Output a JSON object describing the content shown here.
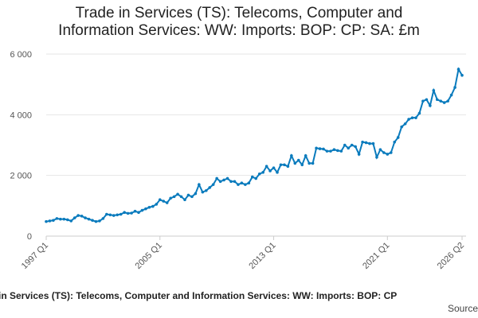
{
  "chart_data": {
    "type": "line",
    "title": "Trade in Services (TS): Telecoms, Computer and Information Services: WW: Imports: BOP: CP: SA: £m",
    "footer": "in Services (TS): Telecoms, Computer and Information Services: WW: Imports: BOP: CP",
    "source": "Source:",
    "color": "#0a7bbd",
    "grid": true,
    "ylim": [
      0,
      6000
    ],
    "yticks": [
      0,
      {
        "value": 2000,
        "label": "2 000"
      },
      {
        "value": 4000,
        "label": "4 000"
      },
      {
        "value": 6000,
        "label": "6 000"
      }
    ],
    "categories": [
      "1997 Q1",
      null,
      null,
      null,
      null,
      null,
      null,
      null,
      null,
      null,
      null,
      null,
      null,
      null,
      null,
      null,
      null,
      null,
      null,
      null,
      null,
      null,
      null,
      null,
      null,
      null,
      null,
      null,
      null,
      null,
      null,
      null,
      "2005 Q1",
      null,
      null,
      null,
      null,
      null,
      null,
      null,
      null,
      null,
      null,
      null,
      null,
      null,
      null,
      null,
      null,
      null,
      null,
      null,
      null,
      null,
      null,
      null,
      null,
      null,
      null,
      null,
      null,
      null,
      null,
      null,
      "2013 Q1",
      null,
      null,
      null,
      null,
      null,
      null,
      null,
      null,
      null,
      null,
      null,
      null,
      null,
      null,
      null,
      null,
      null,
      null,
      null,
      null,
      null,
      null,
      null,
      null,
      null,
      null,
      null,
      null,
      null,
      null,
      null,
      "2021 Q1",
      null,
      null,
      null,
      null,
      null,
      null,
      null,
      null,
      null,
      null,
      null,
      null,
      null,
      null,
      null,
      null,
      null,
      null,
      null,
      null,
      "2026 Q2"
    ],
    "values": [
      480,
      500,
      520,
      580,
      560,
      560,
      540,
      500,
      600,
      680,
      660,
      600,
      560,
      520,
      480,
      500,
      580,
      720,
      700,
      680,
      700,
      720,
      780,
      750,
      760,
      820,
      780,
      850,
      900,
      950,
      980,
      1050,
      1200,
      1150,
      1100,
      1250,
      1300,
      1380,
      1300,
      1200,
      1350,
      1300,
      1400,
      1700,
      1450,
      1500,
      1600,
      1700,
      1900,
      1800,
      1850,
      1900,
      1800,
      1800,
      1700,
      1750,
      1700,
      1750,
      1950,
      1900,
      2050,
      2100,
      2300,
      2150,
      2250,
      2100,
      2350,
      2350,
      2300,
      2650,
      2400,
      2500,
      2350,
      2650,
      2400,
      2400,
      2900,
      2880,
      2870,
      2800,
      2800,
      2850,
      2820,
      2800,
      3000,
      2900,
      3000,
      2950,
      2700,
      3100,
      3080,
      3050,
      3050,
      2600,
      2850,
      2750,
      2700,
      2750,
      3100,
      3250,
      3600,
      3700,
      3850,
      3900,
      3900,
      4050,
      4450,
      4500,
      4300,
      4800,
      4500,
      4450,
      4400,
      4450,
      4650,
      4900,
      5500,
      5300
    ]
  }
}
